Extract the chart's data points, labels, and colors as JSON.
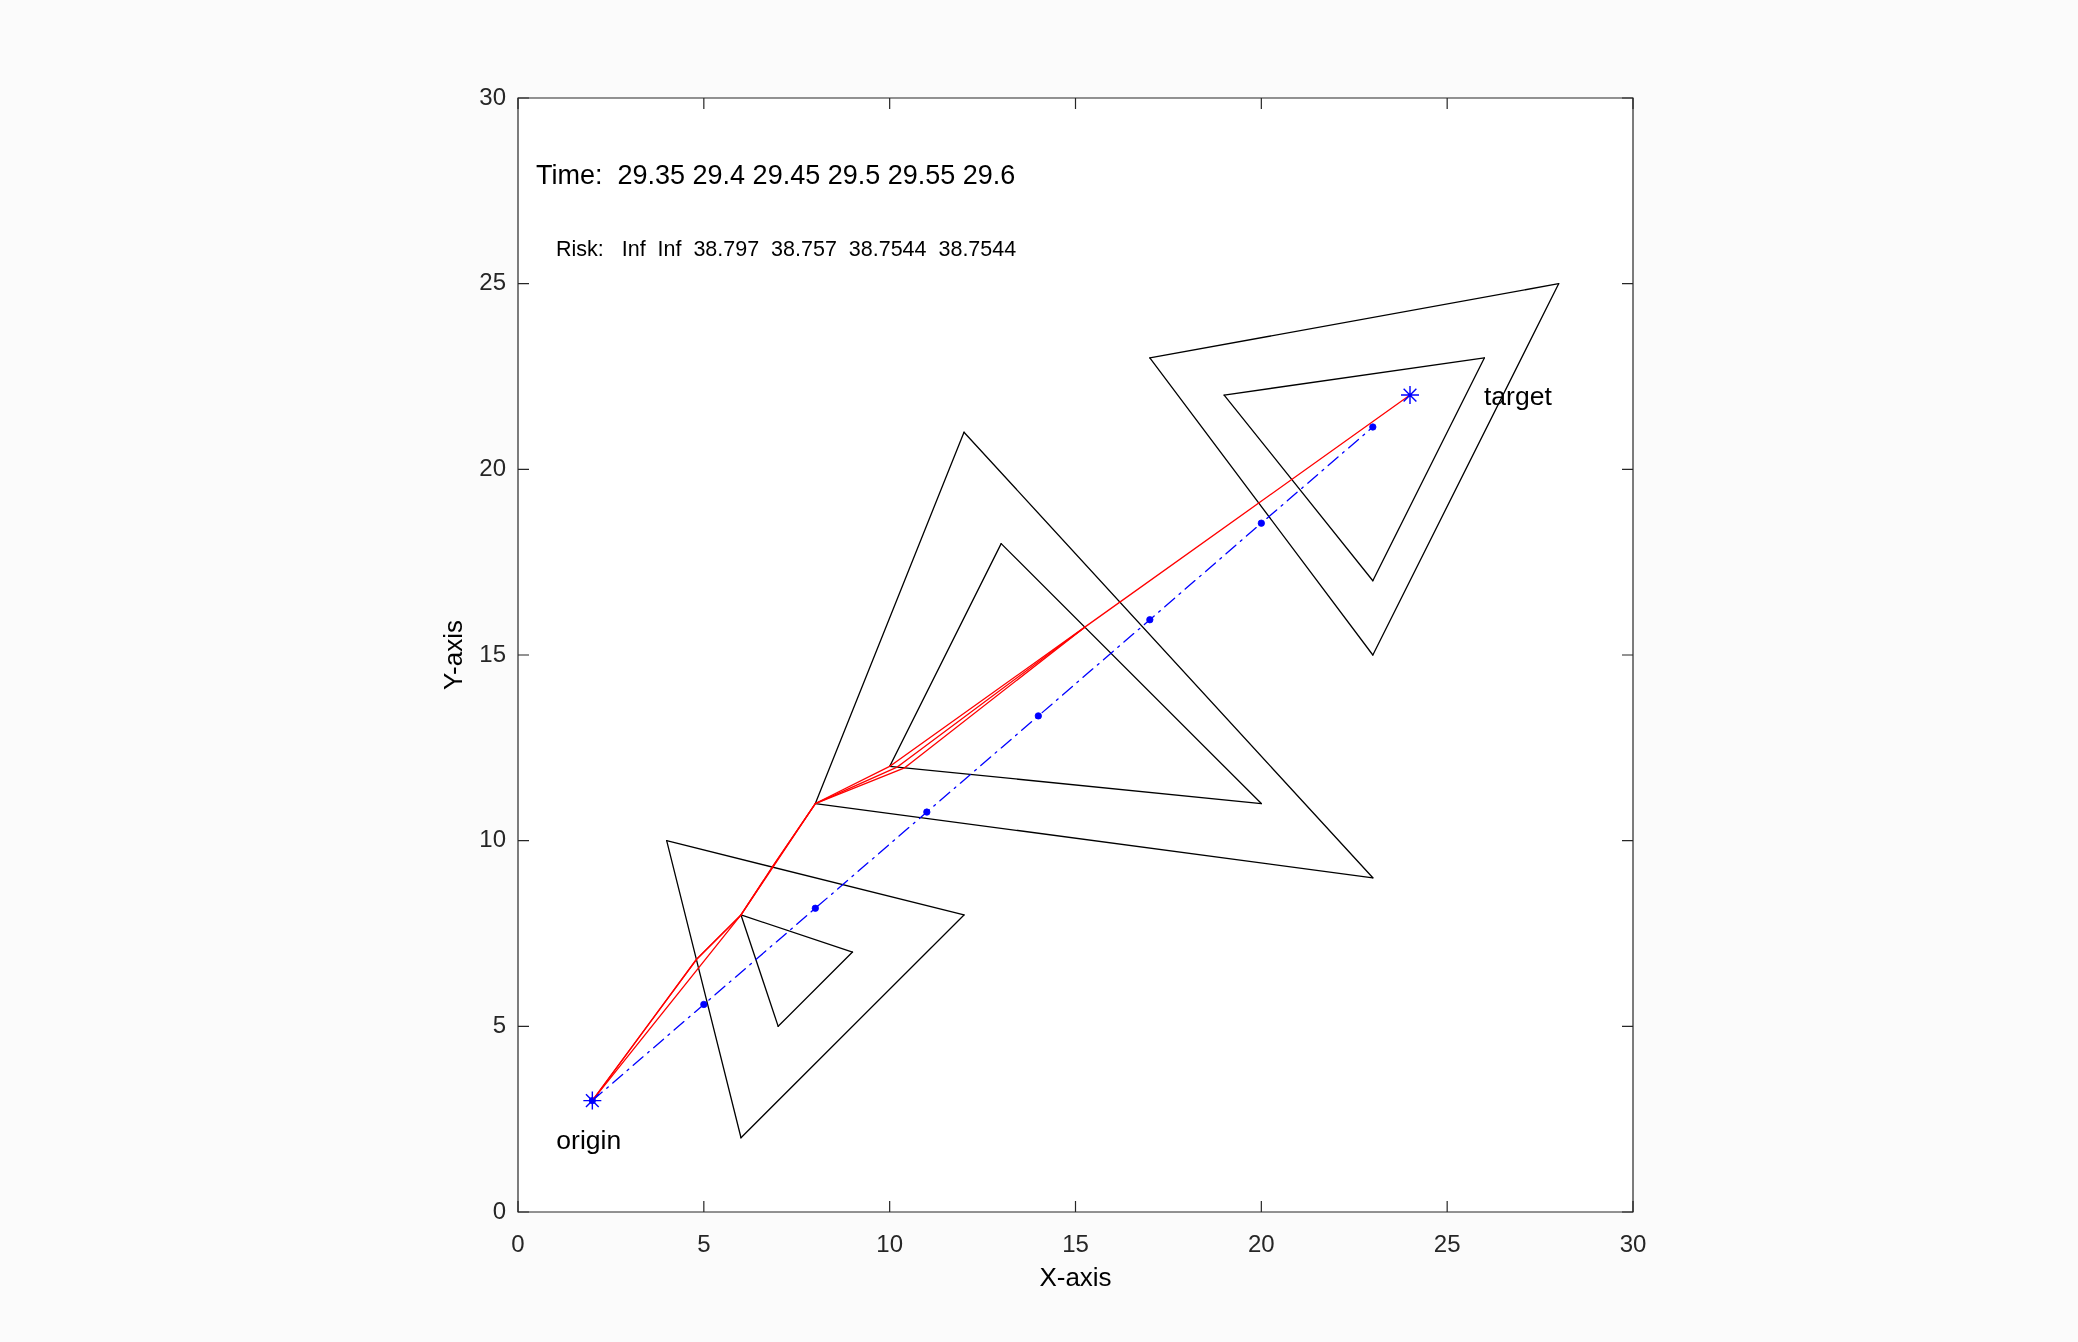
{
  "chart_data": {
    "type": "line",
    "xlabel": "X-axis",
    "ylabel": "Y-axis",
    "annotations": [
      "Time:  29.35 29.4 29.45 29.5 29.55 29.6",
      "Risk:   Inf  Inf  38.797  38.757  38.7544  38.7544",
      {
        "text": "origin",
        "x": 2,
        "y": 3
      },
      {
        "text": "target",
        "x": 24,
        "y": 22
      }
    ],
    "xlim": [
      0,
      30
    ],
    "ylim": [
      0,
      30
    ],
    "xticks": [
      0,
      5,
      10,
      15,
      20,
      25,
      30
    ],
    "yticks": [
      0,
      5,
      10,
      15,
      20,
      25,
      30
    ],
    "grid": false,
    "legend": false,
    "series": [
      {
        "color": "#000000",
        "x": [
          4,
          12
        ],
        "values": [
          10,
          8
        ]
      },
      {
        "color": "#000000",
        "x": [
          6,
          12
        ],
        "values": [
          2,
          8
        ]
      },
      {
        "color": "#000000",
        "x": [
          4,
          6
        ],
        "values": [
          10,
          2
        ]
      },
      {
        "color": "#000000",
        "x": [
          6,
          9
        ],
        "values": [
          8,
          7
        ]
      },
      {
        "color": "#000000",
        "x": [
          7,
          9
        ],
        "values": [
          5,
          7
        ]
      },
      {
        "color": "#000000",
        "x": [
          6,
          7
        ],
        "values": [
          8,
          5
        ]
      },
      {
        "color": "#000000",
        "x": [
          8,
          12
        ],
        "values": [
          11,
          21
        ]
      },
      {
        "color": "#000000",
        "x": [
          12,
          23
        ],
        "values": [
          21,
          9
        ]
      },
      {
        "color": "#000000",
        "x": [
          8,
          23
        ],
        "values": [
          11,
          9
        ]
      },
      {
        "color": "#000000",
        "x": [
          10,
          13
        ],
        "values": [
          12,
          18
        ]
      },
      {
        "color": "#000000",
        "x": [
          13,
          20
        ],
        "values": [
          18,
          11
        ]
      },
      {
        "color": "#000000",
        "x": [
          10,
          20
        ],
        "values": [
          12,
          11
        ]
      },
      {
        "color": "#000000",
        "x": [
          17,
          28
        ],
        "values": [
          23,
          25
        ]
      },
      {
        "color": "#000000",
        "x": [
          23,
          28
        ],
        "values": [
          15,
          25
        ]
      },
      {
        "color": "#000000",
        "x": [
          17,
          23
        ],
        "values": [
          23,
          15
        ]
      },
      {
        "color": "#000000",
        "x": [
          19,
          26
        ],
        "values": [
          22,
          23
        ]
      },
      {
        "color": "#000000",
        "x": [
          23,
          26
        ],
        "values": [
          17,
          23
        ]
      },
      {
        "color": "#000000",
        "x": [
          19,
          23
        ],
        "values": [
          22,
          17
        ]
      },
      {
        "color": "#0000ff",
        "line_style": "dashed",
        "marker": "circle",
        "x": [
          2,
          5,
          8,
          11,
          14,
          17,
          20,
          23
        ],
        "values": [
          3,
          5.59,
          8.18,
          10.77,
          13.36,
          15.95,
          18.55,
          21.14
        ]
      },
      {
        "color": "#ff0000",
        "x": [
          2,
          6,
          8,
          10,
          15.25,
          24
        ],
        "values": [
          3,
          8,
          11,
          12,
          15.75,
          22
        ]
      },
      {
        "color": "#ff0000",
        "x": [
          2,
          4.8,
          6,
          6.85,
          8,
          10.2,
          15.25
        ],
        "values": [
          3,
          6.8,
          8,
          9.3,
          11,
          11.98,
          15.75
        ]
      },
      {
        "color": "#ff0000",
        "x": [
          2,
          4.8,
          6,
          6.85,
          8,
          10.4,
          15.25
        ],
        "values": [
          3,
          6.8,
          8,
          9.3,
          11,
          11.96,
          15.75
        ]
      },
      {
        "type": "scatter",
        "color": "#0000ff",
        "marker": "cross",
        "x": [
          2,
          24
        ],
        "values": [
          3,
          22
        ]
      }
    ]
  }
}
